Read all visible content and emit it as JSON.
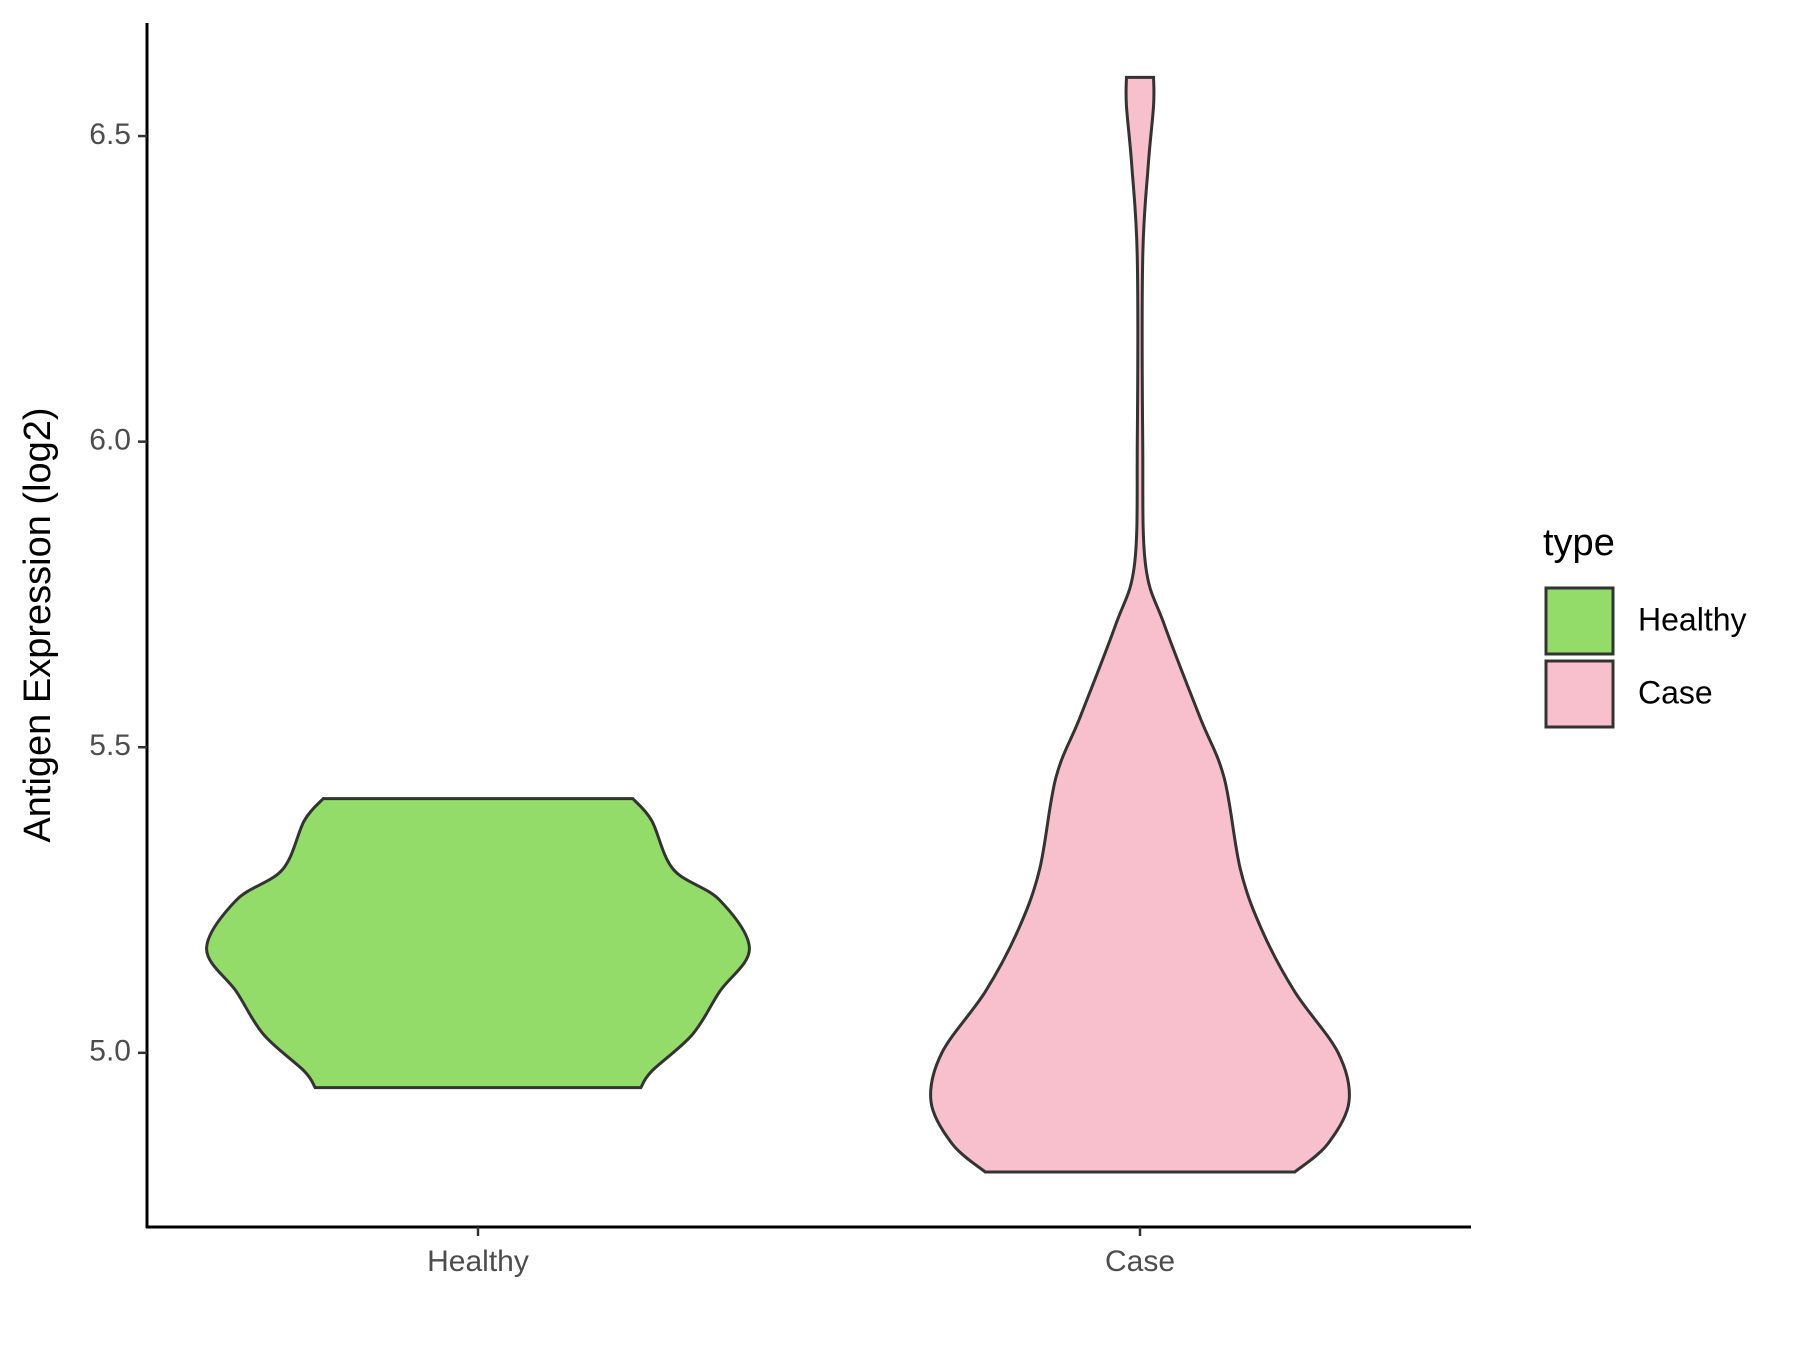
{
  "chart_data": {
    "type": "violin",
    "y_label": "Antigen Expression (log2)",
    "categories": [
      "Healthy",
      "Case"
    ],
    "legend_title": "type",
    "legend_position": "right",
    "series": [
      {
        "name": "Healthy",
        "color": "#93dc6a",
        "profile": {
          "y": [
            4.943,
            4.97,
            5.03,
            5.1,
            5.17,
            5.25,
            5.3,
            5.38,
            5.416
          ],
          "density": [
            0.6,
            0.64,
            0.79,
            0.89,
            1.0,
            0.89,
            0.72,
            0.64,
            0.57
          ]
        }
      },
      {
        "name": "Case",
        "color": "#f7c0cc",
        "profile": {
          "y": [
            4.805,
            4.85,
            4.92,
            5.0,
            5.1,
            5.2,
            5.3,
            5.45,
            5.55,
            5.7,
            5.8,
            6.0,
            6.3,
            6.45,
            6.55,
            6.596
          ],
          "density": [
            0.57,
            0.69,
            0.77,
            0.73,
            0.57,
            0.45,
            0.37,
            0.31,
            0.22,
            0.09,
            0.02,
            0.01,
            0.01,
            0.03,
            0.05,
            0.05
          ]
        }
      }
    ],
    "ylim": [
      4.715,
      6.685
    ],
    "yticks": [
      {
        "value": 5,
        "label": "5.0"
      },
      5.5,
      {
        "value": 6,
        "label": "6.0"
      },
      6.5
    ],
    "grid": false
  }
}
